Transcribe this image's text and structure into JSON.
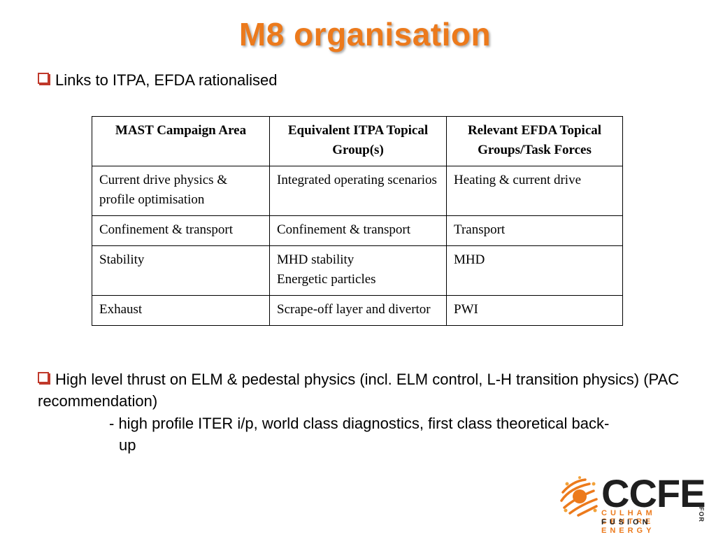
{
  "title": "M8 organisation",
  "bullets": {
    "first": "Links to ITPA, EFDA rationalised",
    "second": "High level thrust on ELM & pedestal physics (incl. ELM control, L-H transition physics) (PAC recommendation)",
    "sub_line": "- high profile ITER i/p, world class diagnostics, first class theoretical back-",
    "sub_cont": "up"
  },
  "table": {
    "headers": [
      "MAST Campaign Area",
      "Equivalent ITPA Topical Group(s)",
      "Relevant EFDA Topical Groups/Task Forces"
    ],
    "rows": [
      [
        "Current drive physics & profile optimisation",
        "Integrated operating scenarios",
        "Heating & current drive"
      ],
      [
        "Confinement & transport",
        "Confinement & transport",
        "Transport"
      ],
      [
        "Stability",
        "MHD stability\nEnergetic particles",
        "MHD"
      ],
      [
        "Exhaust",
        "Scrape-off layer and divertor",
        "PWI"
      ]
    ]
  },
  "logo": {
    "name": "CCFE",
    "line1": "CULHAM CENTRE",
    "line2_fusion": "FUSION",
    "line2_energy": "ENERGY",
    "for": "FOR"
  },
  "colors": {
    "title": "#ec7a1c",
    "bullet_box": "#c0392b",
    "logo_orange": "#ec7a1c"
  }
}
